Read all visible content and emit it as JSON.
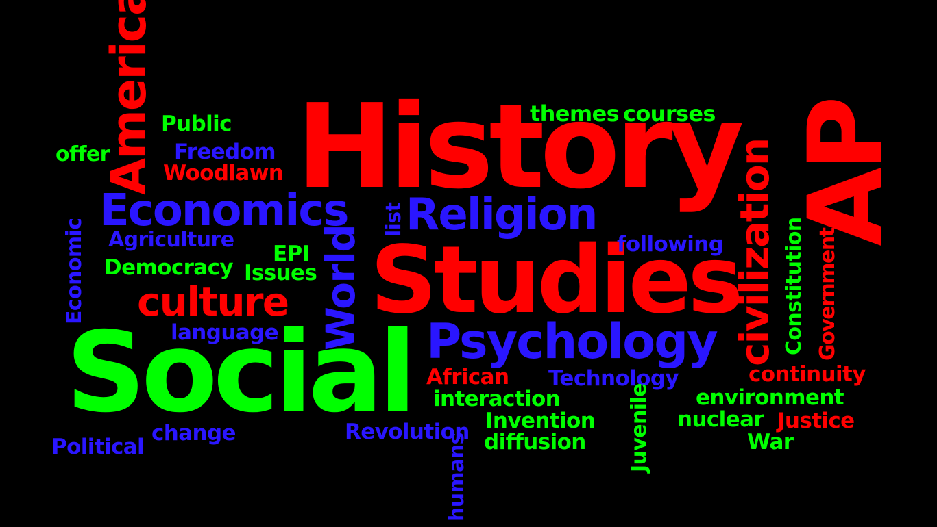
{
  "colors": {
    "red": "#ff0000",
    "green": "#00ff00",
    "blue": "#2a16ff",
    "background": "#000000"
  },
  "words": [
    {
      "text": "History",
      "color": "red"
    },
    {
      "text": "Studies",
      "color": "red"
    },
    {
      "text": "Social",
      "color": "green"
    },
    {
      "text": "AP",
      "color": "red"
    },
    {
      "text": "American",
      "color": "red"
    },
    {
      "text": "Psychology",
      "color": "blue"
    },
    {
      "text": "civilization",
      "color": "red"
    },
    {
      "text": "Economics",
      "color": "blue"
    },
    {
      "text": "Religion",
      "color": "blue"
    },
    {
      "text": "World",
      "color": "blue"
    },
    {
      "text": "culture",
      "color": "red"
    },
    {
      "text": "themes",
      "color": "green"
    },
    {
      "text": "courses",
      "color": "green"
    },
    {
      "text": "Public",
      "color": "green"
    },
    {
      "text": "offer",
      "color": "green"
    },
    {
      "text": "Freedom",
      "color": "blue"
    },
    {
      "text": "Woodlawn",
      "color": "red"
    },
    {
      "text": "list",
      "color": "blue"
    },
    {
      "text": "Agriculture",
      "color": "blue"
    },
    {
      "text": "EPI",
      "color": "green"
    },
    {
      "text": "following",
      "color": "blue"
    },
    {
      "text": "Democracy",
      "color": "green"
    },
    {
      "text": "Issues",
      "color": "green"
    },
    {
      "text": "Economic",
      "color": "blue"
    },
    {
      "text": "Constitution",
      "color": "green"
    },
    {
      "text": "Government",
      "color": "red"
    },
    {
      "text": "language",
      "color": "blue"
    },
    {
      "text": "African",
      "color": "red"
    },
    {
      "text": "Technology",
      "color": "blue"
    },
    {
      "text": "continuity",
      "color": "red"
    },
    {
      "text": "interaction",
      "color": "green"
    },
    {
      "text": "environment",
      "color": "green"
    },
    {
      "text": "Invention",
      "color": "green"
    },
    {
      "text": "nuclear",
      "color": "green"
    },
    {
      "text": "Justice",
      "color": "red"
    },
    {
      "text": "change",
      "color": "blue"
    },
    {
      "text": "Revolution",
      "color": "blue"
    },
    {
      "text": "diffusion",
      "color": "green"
    },
    {
      "text": "War",
      "color": "green"
    },
    {
      "text": "Political",
      "color": "blue"
    },
    {
      "text": "Juvenile",
      "color": "green"
    },
    {
      "text": "humans",
      "color": "blue"
    }
  ]
}
